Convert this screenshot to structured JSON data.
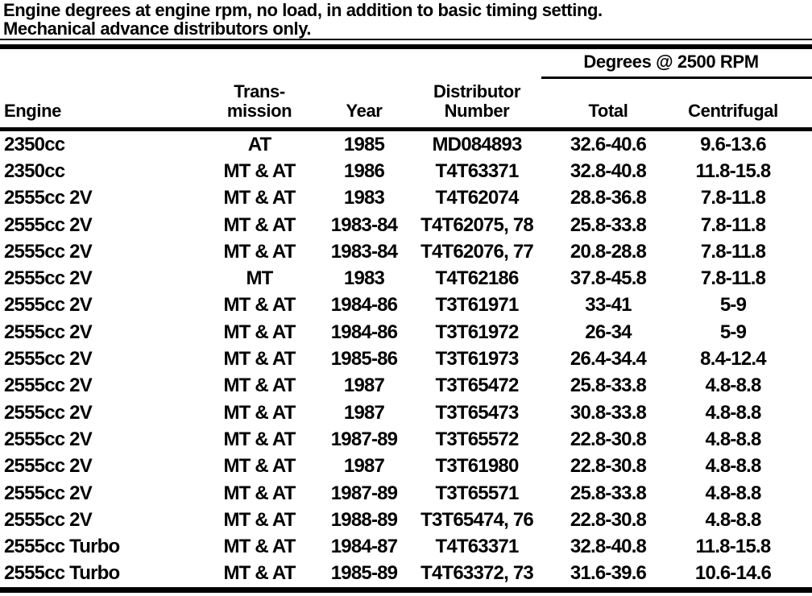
{
  "title": {
    "line1": "Engine degrees at engine rpm, no load, in addition to basic timing setting.",
    "line2": "Mechanical advance distributors only."
  },
  "table": {
    "spanner_label": "Degrees @ 2500 RPM",
    "headers": {
      "engine": "Engine",
      "transmission_line1": "Trans-",
      "transmission_line2": "mission",
      "year": "Year",
      "distributor_line1": "Distributor",
      "distributor_line2": "Number",
      "total": "Total",
      "centrifugal": "Centrifugal"
    },
    "rows": [
      [
        "2350cc",
        "AT",
        "1985",
        "MD084893",
        "32.6-40.6",
        "9.6-13.6"
      ],
      [
        "2350cc",
        "MT & AT",
        "1986",
        "T4T63371",
        "32.8-40.8",
        "11.8-15.8"
      ],
      [
        "2555cc 2V",
        "MT & AT",
        "1983",
        "T4T62074",
        "28.8-36.8",
        "7.8-11.8"
      ],
      [
        "2555cc 2V",
        "MT & AT",
        "1983-84",
        "T4T62075, 78",
        "25.8-33.8",
        "7.8-11.8"
      ],
      [
        "2555cc 2V",
        "MT & AT",
        "1983-84",
        "T4T62076, 77",
        "20.8-28.8",
        "7.8-11.8"
      ],
      [
        "2555cc 2V",
        "MT",
        "1983",
        "T4T62186",
        "37.8-45.8",
        "7.8-11.8"
      ],
      [
        "2555cc 2V",
        "MT & AT",
        "1984-86",
        "T3T61971",
        "33-41",
        "5-9"
      ],
      [
        "2555cc 2V",
        "MT & AT",
        "1984-86",
        "T3T61972",
        "26-34",
        "5-9"
      ],
      [
        "2555cc 2V",
        "MT & AT",
        "1985-86",
        "T3T61973",
        "26.4-34.4",
        "8.4-12.4"
      ],
      [
        "2555cc 2V",
        "MT & AT",
        "1987",
        "T3T65472",
        "25.8-33.8",
        "4.8-8.8"
      ],
      [
        "2555cc 2V",
        "MT & AT",
        "1987",
        "T3T65473",
        "30.8-33.8",
        "4.8-8.8"
      ],
      [
        "2555cc 2V",
        "MT & AT",
        "1987-89",
        "T3T65572",
        "22.8-30.8",
        "4.8-8.8"
      ],
      [
        "2555cc 2V",
        "MT & AT",
        "1987",
        "T3T61980",
        "22.8-30.8",
        "4.8-8.8"
      ],
      [
        "2555cc 2V",
        "MT & AT",
        "1987-89",
        "T3T65571",
        "25.8-33.8",
        "4.8-8.8"
      ],
      [
        "2555cc 2V",
        "MT & AT",
        "1988-89",
        "T3T65474, 76",
        "22.8-30.8",
        "4.8-8.8"
      ],
      [
        "2555cc Turbo",
        "MT & AT",
        "1984-87",
        "T4T63371",
        "32.8-40.8",
        "11.8-15.8"
      ],
      [
        "2555cc Turbo",
        "MT & AT",
        "1985-89",
        "T4T63372, 73",
        "31.6-39.6",
        "10.6-14.6"
      ]
    ]
  }
}
